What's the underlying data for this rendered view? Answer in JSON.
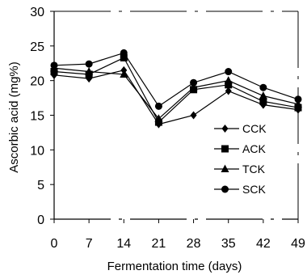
{
  "chart_data": {
    "type": "line",
    "title": "",
    "xlabel": "Fermentation time (days)",
    "ylabel": "Ascorbic acid (mg%)",
    "categories": [
      "0",
      "7",
      "14",
      "21",
      "28",
      "35",
      "42",
      "49"
    ],
    "ylim": [
      0,
      30
    ],
    "yticks": [
      0,
      5,
      10,
      15,
      20,
      25,
      30
    ],
    "grid": false,
    "legend_position": "right",
    "series": [
      {
        "name": "CCK",
        "marker": "diamond",
        "values": [
          20.8,
          20.3,
          21.5,
          13.7,
          15.0,
          18.5,
          16.5,
          15.8
        ]
      },
      {
        "name": "ACK",
        "marker": "square",
        "values": [
          21.3,
          20.9,
          23.3,
          14.0,
          18.7,
          19.4,
          17.0,
          16.1
        ]
      },
      {
        "name": "TCK",
        "marker": "triangle",
        "values": [
          21.8,
          21.3,
          20.9,
          14.5,
          19.0,
          20.0,
          17.8,
          16.6
        ]
      },
      {
        "name": "SCK",
        "marker": "circle",
        "values": [
          22.2,
          22.4,
          24.0,
          16.3,
          19.7,
          21.3,
          19.0,
          17.3
        ]
      }
    ]
  }
}
